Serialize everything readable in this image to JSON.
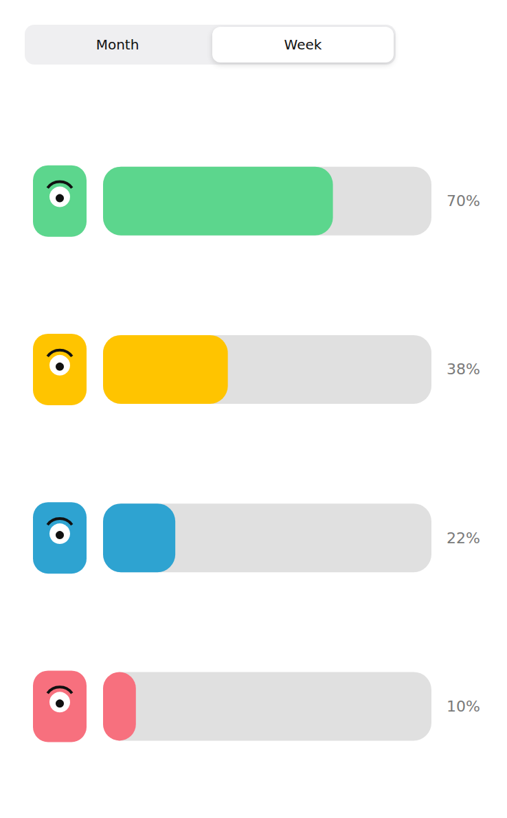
{
  "toggle": {
    "options": [
      "Month",
      "Week"
    ],
    "selected": "Week"
  },
  "chart_data": {
    "type": "bar",
    "orientation": "horizontal",
    "categories": [
      null,
      null,
      null,
      null
    ],
    "values": [
      70,
      38,
      22,
      10
    ],
    "value_labels": [
      "70%",
      "38%",
      "22%",
      "10%"
    ],
    "colors": [
      "#5cd68d",
      "#ffc400",
      "#2ea3d1",
      "#f7707e"
    ],
    "xlim": [
      0,
      100
    ],
    "tick_labels": false,
    "grid": false,
    "data_labels": true
  }
}
